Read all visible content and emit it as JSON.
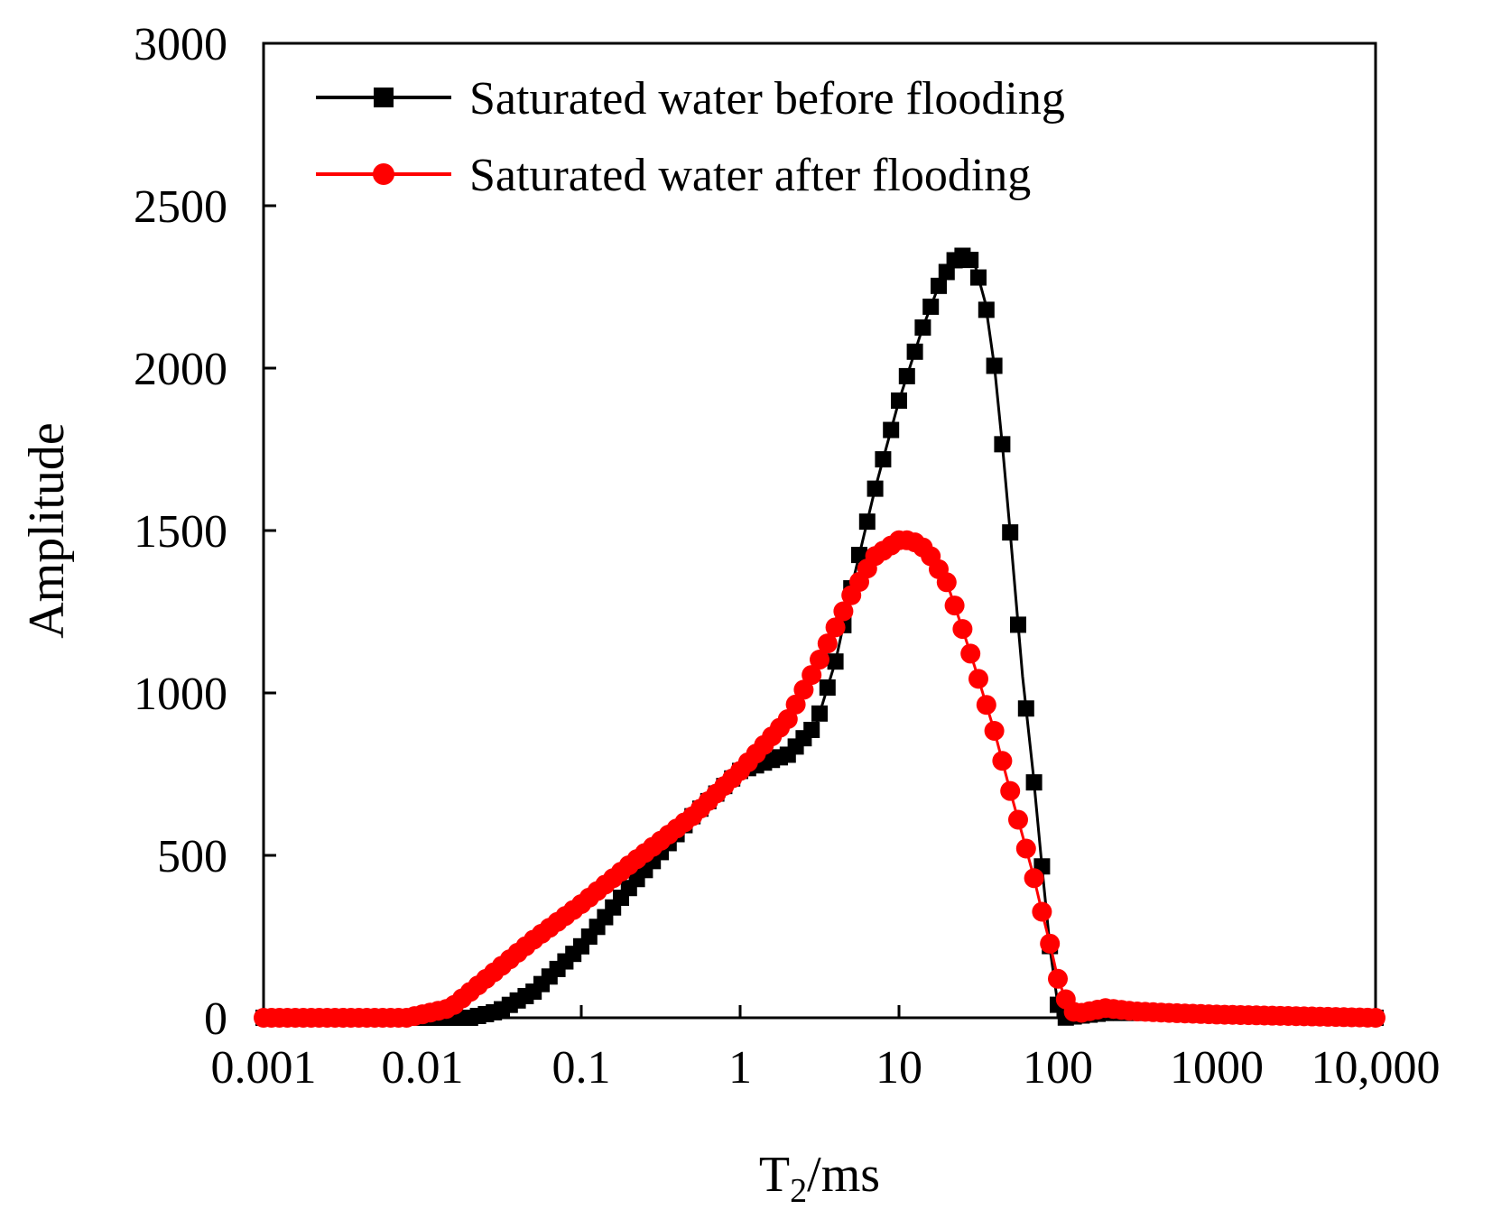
{
  "chart_data": {
    "type": "line",
    "title": "",
    "xlabel": "T",
    "xlabel_sub": "2",
    "xlabel_unit": "/ms",
    "ylabel": "Amplitude",
    "xscale": "log",
    "xlim": [
      0.001,
      10000
    ],
    "ylim": [
      0,
      3000
    ],
    "x_ticks": [
      0.001,
      0.01,
      0.1,
      1,
      10,
      100,
      1000,
      10000
    ],
    "x_tick_labels": [
      "0.001",
      "0.01",
      "0.1",
      "1",
      "10",
      "100",
      "1000",
      "10,000"
    ],
    "y_ticks": [
      0,
      500,
      1000,
      1500,
      2000,
      2500,
      3000
    ],
    "y_tick_labels": [
      "0",
      "500",
      "1000",
      "1500",
      "2000",
      "2500",
      "3000"
    ],
    "grid": false,
    "legend_position": "top-left",
    "series": [
      {
        "name": "Saturated water before flooding",
        "color": "#000000",
        "marker": "square",
        "x": [
          0.001,
          0.01,
          0.02,
          0.03,
          0.05,
          0.1,
          0.2,
          0.5,
          1,
          1.5,
          2,
          3,
          4,
          5,
          7,
          10,
          14,
          18,
          22,
          26,
          30,
          35,
          40,
          45,
          50,
          60,
          70,
          80,
          90,
          100,
          110,
          130,
          200,
          500,
          1000,
          2000,
          10000
        ],
        "y": [
          0,
          0,
          0,
          20,
          80,
          220,
          400,
          620,
          760,
          790,
          810,
          900,
          1100,
          1320,
          1620,
          1900,
          2120,
          2260,
          2330,
          2350,
          2320,
          2200,
          2000,
          1750,
          1500,
          1050,
          750,
          450,
          200,
          40,
          0,
          5,
          15,
          15,
          10,
          5,
          0
        ]
      },
      {
        "name": "Saturated water after flooding",
        "color": "#ff0000",
        "marker": "circle",
        "x": [
          0.001,
          0.008,
          0.015,
          0.02,
          0.05,
          0.1,
          0.2,
          0.5,
          1,
          2,
          3,
          5,
          7,
          10,
          12,
          15,
          20,
          25,
          30,
          40,
          50,
          60,
          70,
          80,
          90,
          100,
          120,
          140,
          200,
          300,
          500,
          1000,
          10000
        ],
        "y": [
          0,
          0,
          30,
          80,
          240,
          350,
          470,
          620,
          760,
          920,
          1080,
          1300,
          1420,
          1470,
          1470,
          1440,
          1340,
          1200,
          1080,
          880,
          700,
          560,
          440,
          320,
          220,
          120,
          20,
          15,
          30,
          20,
          15,
          10,
          0
        ]
      }
    ]
  }
}
